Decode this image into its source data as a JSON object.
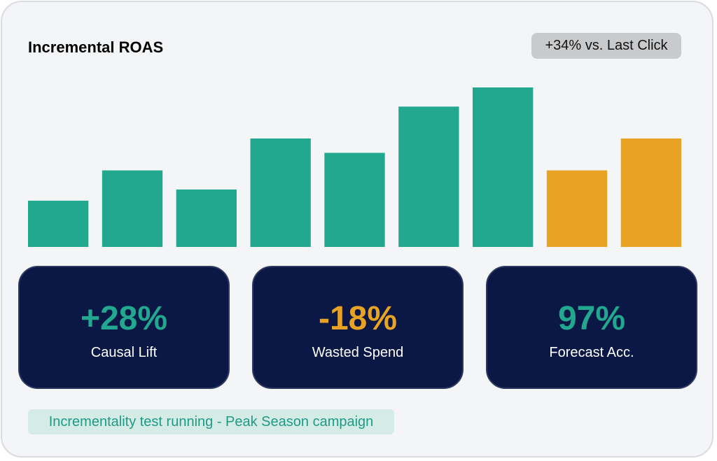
{
  "header": {
    "title": "Incremental ROAS",
    "badge": "+34% vs. Last Click"
  },
  "chart_data": {
    "type": "bar",
    "values": [
      29,
      48,
      36,
      68,
      59,
      88,
      100,
      48,
      68
    ],
    "highlight_indices": [
      7,
      8
    ],
    "ylim": [
      0,
      100
    ],
    "grid": false,
    "colors": {
      "primary": "#22a88f",
      "highlight": "#e8a325"
    }
  },
  "kpis": [
    {
      "value": "+28%",
      "label": "Causal Lift",
      "color": "#22a88f"
    },
    {
      "value": "-18%",
      "label": "Wasted Spend",
      "color": "#e8a325"
    },
    {
      "value": "97%",
      "label": "Forecast Acc.",
      "color": "#22a88f"
    }
  ],
  "status": {
    "text": "Incrementality test running - Peak Season campaign"
  }
}
